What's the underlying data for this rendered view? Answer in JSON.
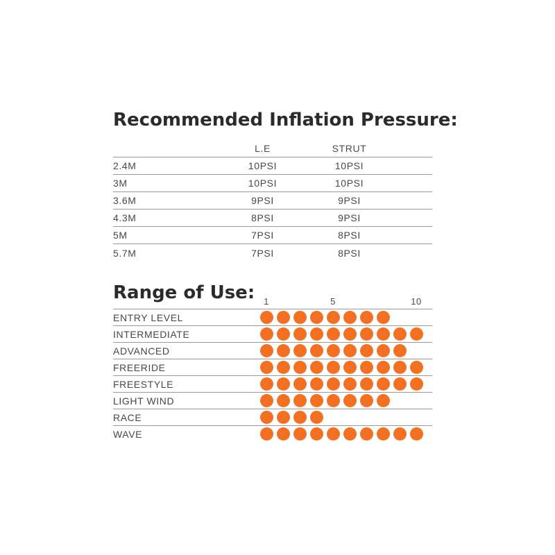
{
  "pressure_section": {
    "title": "Recommended Inflation Pressure:",
    "columns": {
      "le": "L.E",
      "strut": "STRUT"
    },
    "rows": [
      {
        "size": "2.4M",
        "le": "10PSI",
        "strut": "10PSI"
      },
      {
        "size": "3M",
        "le": "10PSI",
        "strut": "10PSI"
      },
      {
        "size": "3.6M",
        "le": "9PSI",
        "strut": "9PSI"
      },
      {
        "size": "4.3M",
        "le": "8PSI",
        "strut": "9PSI"
      },
      {
        "size": "5M",
        "le": "7PSI",
        "strut": "8PSI"
      },
      {
        "size": "5.7M",
        "le": "7PSI",
        "strut": "8PSI"
      }
    ]
  },
  "range_section": {
    "title": "Range of Use:",
    "scale_labels": [
      "1",
      "5",
      "10"
    ],
    "scale_max": 10,
    "dot_color": "#f36f21",
    "rows": [
      {
        "label": "ENTRY LEVEL",
        "value": 8
      },
      {
        "label": "INTERMEDIATE",
        "value": 10
      },
      {
        "label": "ADVANCED",
        "value": 9
      },
      {
        "label": "FREERIDE",
        "value": 10
      },
      {
        "label": "FREESTYLE",
        "value": 10
      },
      {
        "label": "LIGHT WIND",
        "value": 8
      },
      {
        "label": "RACE",
        "value": 4
      },
      {
        "label": "WAVE",
        "value": 10
      }
    ]
  },
  "chart_data": [
    {
      "type": "table",
      "title": "Recommended Inflation Pressure:",
      "columns": [
        "",
        "L.E",
        "STRUT"
      ],
      "rows": [
        [
          "2.4M",
          "10PSI",
          "10PSI"
        ],
        [
          "3M",
          "10PSI",
          "10PSI"
        ],
        [
          "3.6M",
          "9PSI",
          "9PSI"
        ],
        [
          "4.3M",
          "8PSI",
          "9PSI"
        ],
        [
          "5M",
          "7PSI",
          "8PSI"
        ],
        [
          "5.7M",
          "7PSI",
          "8PSI"
        ]
      ]
    },
    {
      "type": "bar",
      "subtype": "dot-rating-rows",
      "title": "Range of Use:",
      "categories": [
        "ENTRY LEVEL",
        "INTERMEDIATE",
        "ADVANCED",
        "FREERIDE",
        "FREESTYLE",
        "LIGHT WIND",
        "RACE",
        "WAVE"
      ],
      "values": [
        8,
        10,
        9,
        10,
        10,
        8,
        4,
        10
      ],
      "xlabel": "",
      "ylabel": "",
      "xlim": [
        1,
        10
      ],
      "x_tick_labels": [
        "1",
        "5",
        "10"
      ],
      "x_tick_positions": [
        1,
        5,
        10
      ],
      "grid": false,
      "legend": false,
      "marker_color": "#f36f21"
    }
  ]
}
